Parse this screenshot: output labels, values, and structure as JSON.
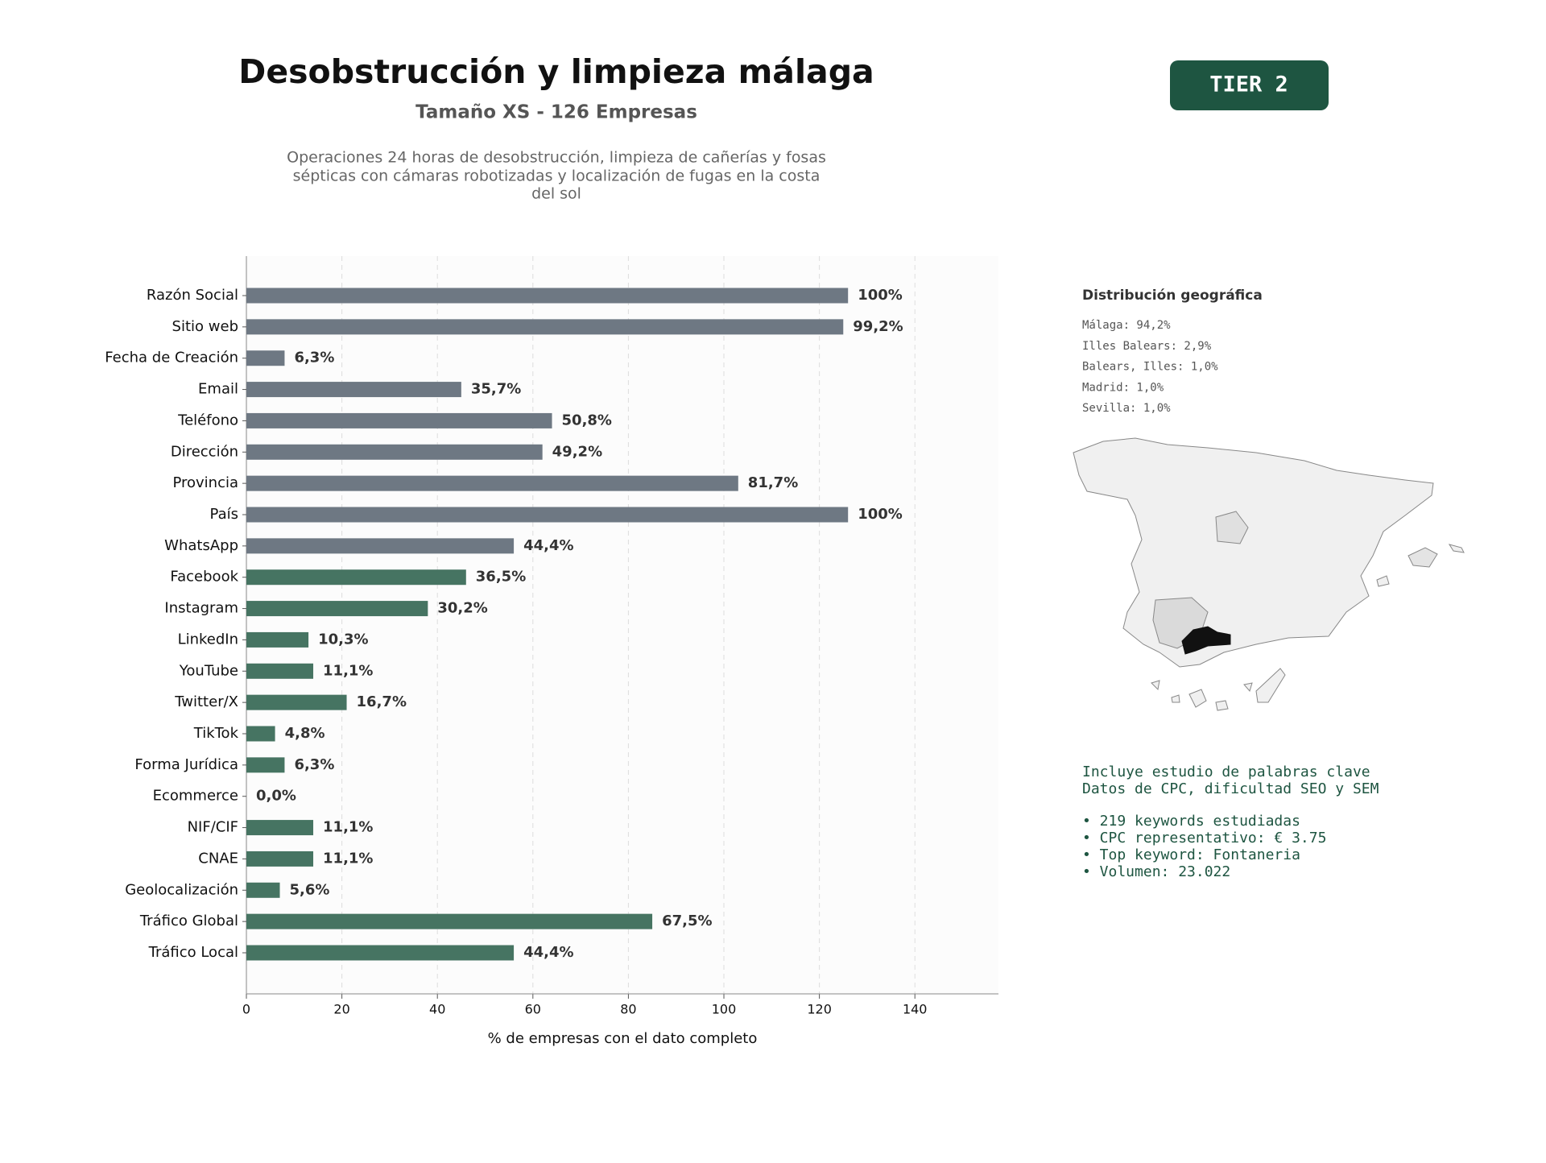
{
  "chart_data": {
    "type": "barh",
    "title": "Desobstrucción y limpieza málaga",
    "subtitle": "Tamaño XS - 126 Empresas",
    "description": [
      "Operaciones 24 horas de desobstrucción, limpieza de cañerías y fosas",
      "sépticas con cámaras robotizadas y localización de fugas en la costa",
      "del sol"
    ],
    "badge": "TIER 2",
    "xlabel": "% de empresas con el dato completo",
    "categories": [
      "Razón Social",
      "Sitio web",
      "Fecha de Creación",
      "Email",
      "Teléfono",
      "Dirección",
      "Provincia",
      "País",
      "WhatsApp",
      "Facebook",
      "Instagram",
      "LinkedIn",
      "YouTube",
      "Twitter/X",
      "TikTok",
      "Forma Jurídica",
      "Ecommerce",
      "NIF/CIF",
      "CNAE",
      "Geolocalización",
      "Tráfico Global",
      "Tráfico Local"
    ],
    "values": [
      126,
      125,
      8,
      45,
      64,
      62,
      103,
      126,
      56,
      46,
      38,
      13,
      14,
      21,
      6,
      8,
      0,
      14,
      14,
      7,
      85,
      56
    ],
    "value_labels": [
      "100%",
      "99,2%",
      "6,3%",
      "35,7%",
      "50,8%",
      "49,2%",
      "81,7%",
      "100%",
      "44,4%",
      "36,5%",
      "30,2%",
      "10,3%",
      "11,1%",
      "16,7%",
      "4,8%",
      "6,3%",
      "0,0%",
      "11,1%",
      "11,1%",
      "5,6%",
      "67,5%",
      "44,4%"
    ],
    "colors": [
      "#6e7883",
      "#6e7883",
      "#6e7883",
      "#6e7883",
      "#6e7883",
      "#6e7883",
      "#6e7883",
      "#6e7883",
      "#6e7883",
      "#467462",
      "#467462",
      "#467462",
      "#467462",
      "#467462",
      "#467462",
      "#467462",
      "#467462",
      "#467462",
      "#467462",
      "#467462",
      "#467462",
      "#467462"
    ],
    "xlim": [
      0,
      157.5
    ],
    "xticks": [
      0,
      20,
      40,
      60,
      80,
      100,
      120,
      140
    ],
    "grid": true,
    "geo_title": "Distribución geográfica",
    "geo_list": [
      "Málaga: 94,2%",
      "Illes Balears: 2,9%",
      "Balears, Illes: 1,0%",
      "Madrid: 1,0%",
      "Sevilla: 1,0%"
    ],
    "keywords_intro": [
      "Incluye estudio de palabras clave",
      "Datos de CPC, dificultad SEO y SEM"
    ],
    "keywords_list": [
      "• 219 keywords estudiadas",
      "• CPC representativo: € 3.75",
      "• Top keyword: Fontaneria",
      "• Volumen: 23.022"
    ]
  }
}
